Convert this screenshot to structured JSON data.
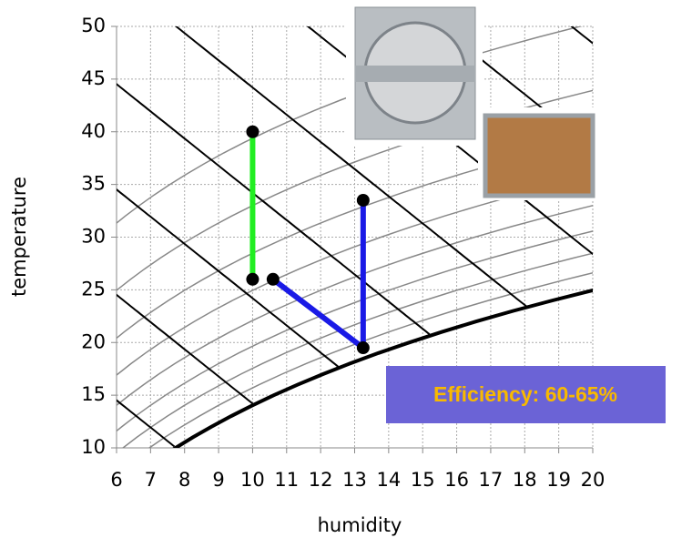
{
  "chart_data": {
    "type": "line",
    "x_label": "humidity",
    "y_label": "temperature",
    "xlim": [
      6,
      20
    ],
    "ylim": [
      10,
      50
    ],
    "xticks": [
      6,
      7,
      8,
      9,
      10,
      11,
      12,
      13,
      14,
      15,
      16,
      17,
      18,
      19,
      20
    ],
    "yticks": [
      10,
      15,
      20,
      25,
      30,
      35,
      40,
      45,
      50
    ],
    "grid": true,
    "series": [
      {
        "color": "#22ee22",
        "x": [
          10,
          10
        ],
        "values": [
          40,
          26
        ]
      },
      {
        "color": "#1a1ae6",
        "x": [
          10.6,
          13.25,
          13.25
        ],
        "values": [
          26,
          19.5,
          33.5
        ]
      }
    ],
    "annotation": "Efficiency: 60-65%"
  }
}
